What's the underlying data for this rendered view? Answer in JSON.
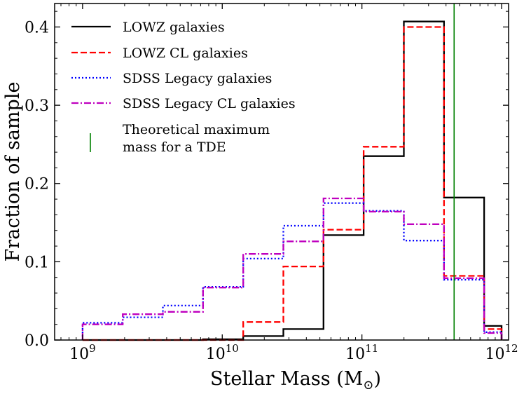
{
  "chart_data": {
    "type": "step",
    "title": "",
    "xlabel": "Stellar Mass (M",
    "xlabel_sub": "⊙",
    "xlabel_close": ")",
    "ylabel": "Fraction of sample",
    "xscale": "log",
    "xlim_log10": [
      8.8,
      12.05
    ],
    "ylim": [
      0,
      0.43
    ],
    "bin_edges_log10": [
      9.0,
      9.2875,
      9.575,
      9.8625,
      10.15,
      10.4375,
      10.725,
      11.0125,
      11.3,
      11.5875,
      11.875,
      12.0
    ],
    "x_ticks": [
      {
        "value": 9,
        "label": "10",
        "exp": "9"
      },
      {
        "value": 10,
        "label": "10",
        "exp": "10"
      },
      {
        "value": 11,
        "label": "10",
        "exp": "11"
      },
      {
        "value": 12,
        "label": "10",
        "exp": "12"
      }
    ],
    "y_ticks": [
      {
        "value": 0.0,
        "label": "0.0"
      },
      {
        "value": 0.1,
        "label": "0.1"
      },
      {
        "value": 0.2,
        "label": "0.2"
      },
      {
        "value": 0.3,
        "label": "0.3"
      },
      {
        "value": 0.4,
        "label": "0.4"
      }
    ],
    "legend_position": "upper-left",
    "series": [
      {
        "name": "LOWZ galaxies",
        "color": "#000000",
        "style": "solid",
        "values": [
          0.0,
          0.0,
          0.0,
          0.001,
          0.005,
          0.014,
          0.134,
          0.235,
          0.407,
          0.182,
          0.018
        ]
      },
      {
        "name": "LOWZ CL galaxies",
        "color": "#ff0000",
        "style": "dashed",
        "values": [
          0.0,
          0.0,
          0.0,
          0.0,
          0.023,
          0.094,
          0.141,
          0.247,
          0.4,
          0.082,
          0.014
        ]
      },
      {
        "name": "SDSS Legacy galaxies",
        "color": "#0000ff",
        "style": "dotted",
        "values": [
          0.022,
          0.029,
          0.044,
          0.068,
          0.104,
          0.146,
          0.175,
          0.165,
          0.127,
          0.077,
          0.01
        ]
      },
      {
        "name": "SDSS Legacy CL galaxies",
        "color": "#bf00bf",
        "style": "dashdot",
        "values": [
          0.02,
          0.033,
          0.036,
          0.067,
          0.11,
          0.126,
          0.181,
          0.164,
          0.148,
          0.079,
          0.009
        ]
      }
    ],
    "vline": {
      "name": "Theoretical maximum",
      "name_line2": "mass for a TDE",
      "color": "#008000",
      "x_log10": 11.66
    }
  }
}
